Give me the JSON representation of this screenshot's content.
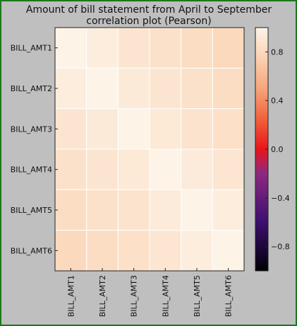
{
  "chart_data": {
    "type": "heatmap",
    "title": "Amount of bill statement from April to September\ncorrelation plot (Pearson)",
    "x_labels": [
      "BILL_AMT1",
      "BILL_AMT2",
      "BILL_AMT3",
      "BILL_AMT4",
      "BILL_AMT5",
      "BILL_AMT6"
    ],
    "y_labels": [
      "BILL_AMT1",
      "BILL_AMT2",
      "BILL_AMT3",
      "BILL_AMT4",
      "BILL_AMT5",
      "BILL_AMT6"
    ],
    "values": [
      [
        1.0,
        0.95,
        0.89,
        0.86,
        0.83,
        0.8
      ],
      [
        0.95,
        1.0,
        0.93,
        0.89,
        0.86,
        0.83
      ],
      [
        0.89,
        0.93,
        1.0,
        0.92,
        0.88,
        0.85
      ],
      [
        0.86,
        0.89,
        0.92,
        1.0,
        0.94,
        0.9
      ],
      [
        0.83,
        0.86,
        0.88,
        0.94,
        1.0,
        0.95
      ],
      [
        0.8,
        0.83,
        0.85,
        0.9,
        0.95,
        1.0
      ]
    ],
    "colorbar": {
      "vmin": -1.0,
      "vmax": 1.0,
      "ticks": [
        0.8,
        0.4,
        0.0,
        -0.4,
        -0.8
      ],
      "tick_labels": [
        "0.8",
        "0.4",
        "0.0",
        "−0.4",
        "−0.8"
      ],
      "colormap": "magma-like (dark purple → red → orange → cream)"
    },
    "grid": false,
    "cell_border_color": "#ffffff"
  }
}
